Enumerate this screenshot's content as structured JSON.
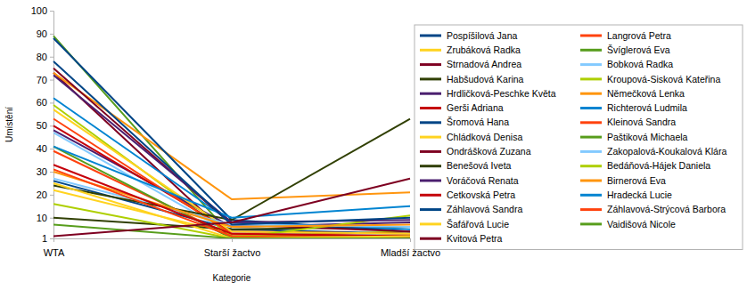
{
  "chart_data": {
    "type": "line",
    "x_label": "Kategorie",
    "y_label": "Umístění",
    "categories": [
      "WTA",
      "Starší žactvo",
      "Mladší žactvo"
    ],
    "ylim": [
      1,
      100
    ],
    "yticks": [
      1,
      10,
      20,
      30,
      40,
      50,
      60,
      70,
      80,
      90,
      100
    ],
    "grid": false,
    "legend": "right",
    "series": [
      {
        "name": "Pospíšilová Jana",
        "color": "#004586",
        "values": [
          26,
          5,
          3
        ]
      },
      {
        "name": "Langrová Petra",
        "color": "#ff420e",
        "values": [
          39,
          2,
          2
        ]
      },
      {
        "name": "Zrubáková Radka",
        "color": "#ffd320",
        "values": [
          22,
          3,
          2
        ]
      },
      {
        "name": "Švíglerová Eva",
        "color": "#579d1c",
        "values": [
          89,
          2,
          1
        ]
      },
      {
        "name": "Strnadová Andrea",
        "color": "#7e0021",
        "values": [
          73,
          1,
          1
        ]
      },
      {
        "name": "Bobková Radka",
        "color": "#83caff",
        "values": [
          47,
          3,
          3
        ]
      },
      {
        "name": "Habšudová Karina",
        "color": "#314004",
        "values": [
          10,
          5,
          6
        ]
      },
      {
        "name": "Kroupová-Sisková Kateřina",
        "color": "#aecf00",
        "values": [
          59,
          2,
          4
        ]
      },
      {
        "name": "Hrdličková-Peschke Květa",
        "color": "#4b1f6f",
        "values": [
          48,
          6,
          8
        ]
      },
      {
        "name": "Němečková Lenka",
        "color": "#ff950e",
        "values": [
          73,
          18,
          21
        ]
      },
      {
        "name": "Gerši Adriana",
        "color": "#c5000b",
        "values": [
          50,
          4,
          3
        ]
      },
      {
        "name": "Richterová Ludmila",
        "color": "#0084d1",
        "values": [
          62,
          8,
          5
        ]
      },
      {
        "name": "Šromová Hana",
        "color": "#004586",
        "values": [
          88,
          9,
          4
        ]
      },
      {
        "name": "Kleinová Sandra",
        "color": "#ff420e",
        "values": [
          53,
          3,
          2
        ]
      },
      {
        "name": "Chládková Denisa",
        "color": "#ffd320",
        "values": [
          57,
          4,
          3
        ]
      },
      {
        "name": "Paštiková Michaela",
        "color": "#579d1c",
        "values": [
          41,
          1,
          2
        ]
      },
      {
        "name": "Ondrášková Zuzana",
        "color": "#7e0021",
        "values": [
          75,
          7,
          4
        ]
      },
      {
        "name": "Zakopalová-Koukalová Klára",
        "color": "#83caff",
        "values": [
          27,
          7,
          6
        ]
      },
      {
        "name": "Benešová Iveta",
        "color": "#314004",
        "values": [
          24,
          9,
          53
        ]
      },
      {
        "name": "Bedáňová-Hájek Daniela",
        "color": "#aecf00",
        "values": [
          16,
          1,
          11
        ]
      },
      {
        "name": "Voráčová Renata",
        "color": "#4b1f6f",
        "values": [
          72,
          8,
          9
        ]
      },
      {
        "name": "Birnerová Eva",
        "color": "#ff950e",
        "values": [
          30,
          6,
          7
        ]
      },
      {
        "name": "Cetkovská Petra",
        "color": "#c5000b",
        "values": [
          33,
          3,
          2
        ]
      },
      {
        "name": "Hradecká Lucie",
        "color": "#0084d1",
        "values": [
          41,
          10,
          15
        ]
      },
      {
        "name": "Záhlavová Sandra",
        "color": "#004586",
        "values": [
          78,
          7,
          10
        ]
      },
      {
        "name": "Záhlavová-Strýcová Barbora",
        "color": "#ff420e",
        "values": [
          31,
          2,
          1
        ]
      },
      {
        "name": "Šafářová Lucie",
        "color": "#ffd320",
        "values": [
          25,
          1,
          2
        ]
      },
      {
        "name": "Vaidišová Nicole",
        "color": "#579d1c",
        "values": [
          7,
          1,
          1
        ]
      },
      {
        "name": "Kvitová Petra",
        "color": "#7e0021",
        "values": [
          2,
          8,
          27
        ]
      }
    ]
  }
}
